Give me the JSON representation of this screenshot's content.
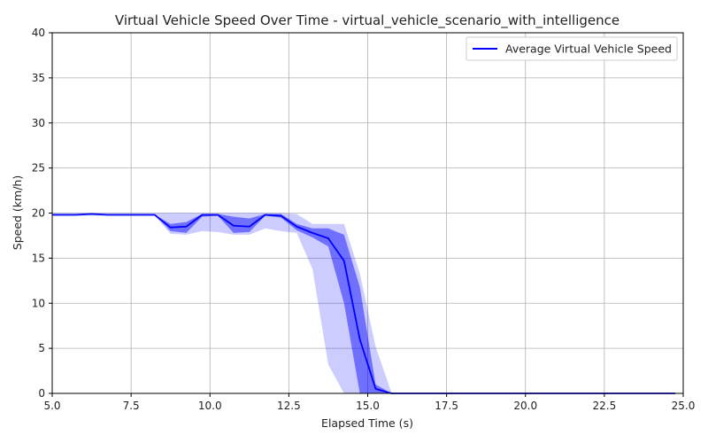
{
  "chart_data": {
    "type": "line",
    "title": "Virtual Vehicle Speed Over Time - virtual_vehicle_scenario_with_intelligence",
    "xlabel": "Elapsed Time (s)",
    "ylabel": "Speed (km/h)",
    "xlim": [
      5.0,
      25.0
    ],
    "ylim": [
      0,
      40
    ],
    "xticks": [
      "5.0",
      "7.5",
      "10.0",
      "12.5",
      "15.0",
      "17.5",
      "20.0",
      "22.5",
      "25.0"
    ],
    "yticks": [
      "0",
      "5",
      "10",
      "15",
      "20",
      "25",
      "30",
      "35",
      "40"
    ],
    "grid": true,
    "legend_position": "top-right",
    "series": [
      {
        "name": "Average Virtual Vehicle Speed",
        "color": "#0000ff",
        "x": [
          5.0,
          5.75,
          6.25,
          6.75,
          7.25,
          7.75,
          8.25,
          8.75,
          9.25,
          9.75,
          10.25,
          10.75,
          11.25,
          11.75,
          12.25,
          12.75,
          13.25,
          13.75,
          14.25,
          14.75,
          15.25,
          15.75,
          16.25,
          17.5,
          20.0,
          22.5,
          24.75
        ],
        "values": [
          19.8,
          19.8,
          19.9,
          19.8,
          19.8,
          19.8,
          19.8,
          18.4,
          18.5,
          19.8,
          19.8,
          18.6,
          18.5,
          19.8,
          19.7,
          18.5,
          17.8,
          17.2,
          14.7,
          6.0,
          0.5,
          0.0,
          0.0,
          0.0,
          0.0,
          0.0,
          0.0
        ],
        "std_band": {
          "color": "#0000ff",
          "lower": [
            19.8,
            19.8,
            19.9,
            19.8,
            19.8,
            19.8,
            19.8,
            18.0,
            17.8,
            19.6,
            19.7,
            17.8,
            17.9,
            19.7,
            19.5,
            18.1,
            17.3,
            16.3,
            10.0,
            0.0,
            0.0,
            0.0,
            0.0,
            0.0,
            0.0,
            0.0,
            0.0
          ],
          "upper": [
            19.8,
            19.8,
            19.9,
            19.8,
            19.8,
            19.8,
            19.8,
            18.8,
            19.0,
            19.9,
            19.9,
            19.6,
            19.4,
            19.9,
            19.9,
            18.8,
            18.3,
            18.3,
            17.6,
            11.8,
            1.0,
            0.0,
            0.0,
            0.0,
            0.0,
            0.0,
            0.0
          ]
        },
        "range_band": {
          "color": "#0000ff",
          "lower": [
            19.7,
            19.7,
            19.7,
            19.7,
            19.7,
            19.7,
            19.7,
            17.7,
            17.6,
            18.0,
            17.9,
            17.6,
            17.6,
            18.3,
            18.0,
            17.8,
            13.8,
            3.2,
            0.0,
            0.0,
            0.0,
            0.0,
            0.0,
            0.0,
            0.0,
            0.0,
            0.0
          ],
          "upper": [
            20.0,
            20.0,
            20.0,
            20.0,
            20.0,
            20.0,
            20.0,
            20.0,
            20.0,
            20.0,
            20.0,
            20.0,
            20.0,
            20.0,
            20.0,
            19.9,
            18.8,
            18.8,
            18.8,
            13.3,
            5.2,
            0.1,
            0.0,
            0.0,
            0.0,
            0.0,
            0.0
          ]
        }
      }
    ]
  }
}
